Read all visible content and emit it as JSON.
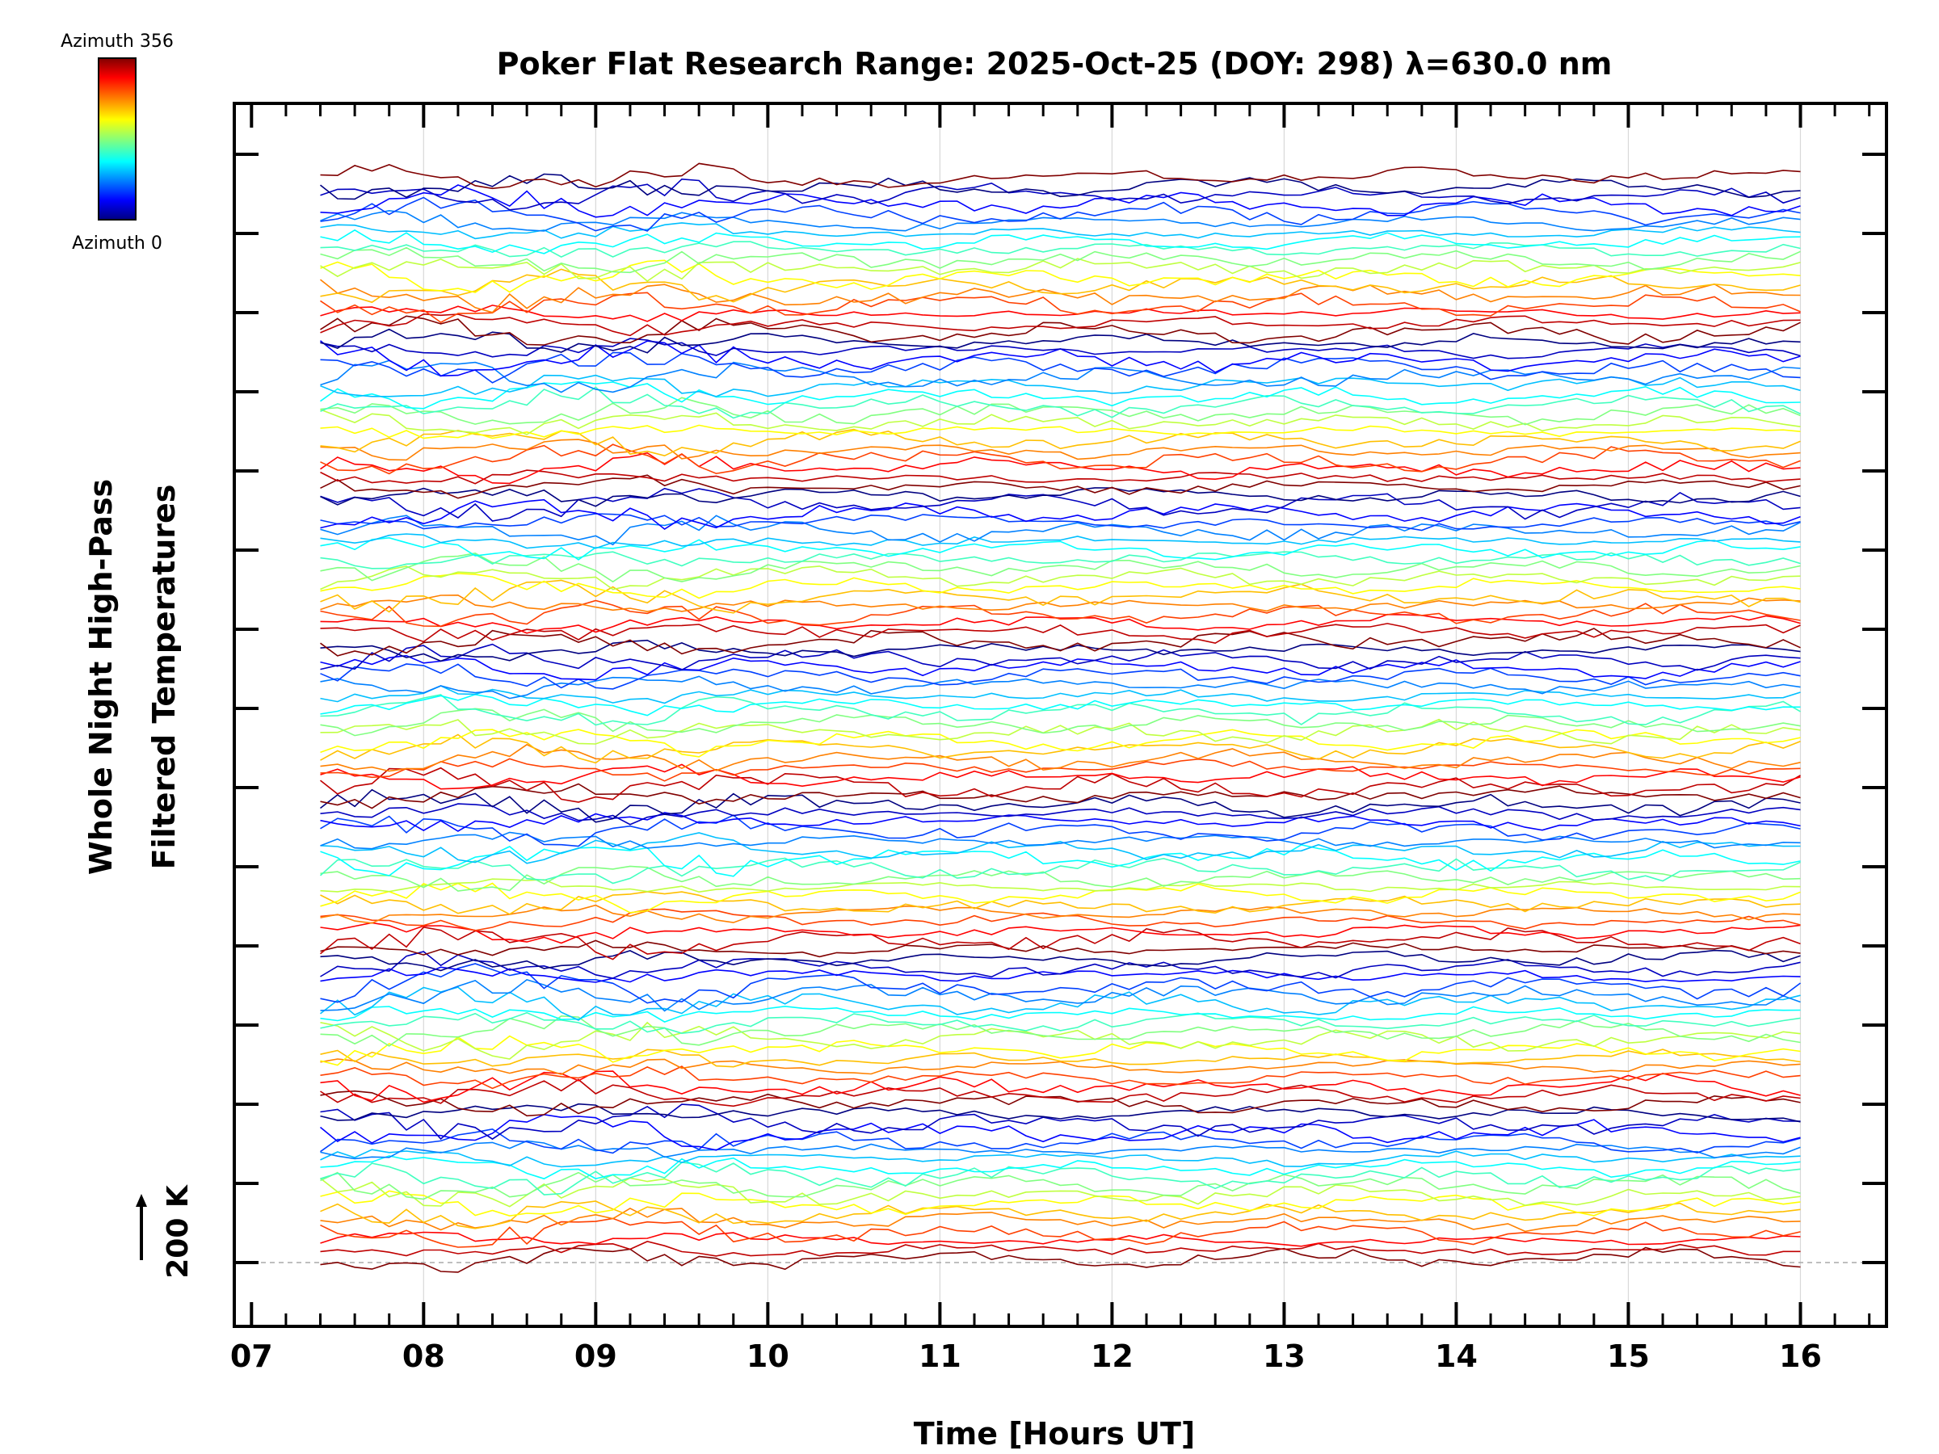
{
  "chart_data": {
    "type": "line",
    "title": "Poker Flat Research Range: 2025-Oct-25 (DOY: 298) λ=630.0 nm",
    "xlabel": "Time [Hours UT]",
    "ylabel_line1": "Whole Night High-Pass",
    "ylabel_line2": "Filtered Temperatures",
    "xlim": [
      6.9,
      16.5
    ],
    "x_ticks": [
      "07",
      "08",
      "09",
      "10",
      "11",
      "12",
      "13",
      "14",
      "15",
      "16"
    ],
    "x_tick_values": [
      7,
      8,
      9,
      10,
      11,
      12,
      13,
      14,
      15,
      16
    ],
    "data_x_range": [
      7.4,
      16.0
    ],
    "sample_interval_hours": 0.1,
    "scale_label": "200 K",
    "colorbar": {
      "top_label": "Azimuth 356",
      "bottom_label": "Azimuth 0",
      "min": 0,
      "max": 356
    },
    "series_count": 120,
    "series_groups": 7,
    "series_per_group": 17,
    "baseline_dashed": true,
    "colors": {
      "axis": "#000000",
      "grid": "#d8d8d8",
      "baseline": "#aaaaaa"
    }
  }
}
